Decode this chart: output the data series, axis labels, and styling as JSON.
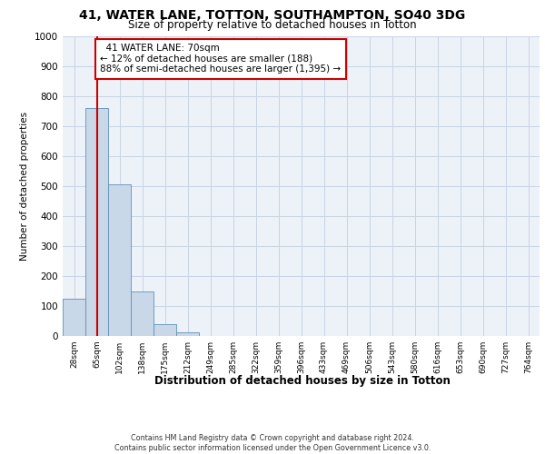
{
  "title_line1": "41, WATER LANE, TOTTON, SOUTHAMPTON, SO40 3DG",
  "title_line2": "Size of property relative to detached houses in Totton",
  "xlabel": "Distribution of detached houses by size in Totton",
  "ylabel": "Number of detached properties",
  "categories": [
    "28sqm",
    "65sqm",
    "102sqm",
    "138sqm",
    "175sqm",
    "212sqm",
    "249sqm",
    "285sqm",
    "322sqm",
    "359sqm",
    "396sqm",
    "433sqm",
    "469sqm",
    "506sqm",
    "543sqm",
    "580sqm",
    "616sqm",
    "653sqm",
    "690sqm",
    "727sqm",
    "764sqm"
  ],
  "values": [
    125,
    760,
    505,
    150,
    38,
    12,
    0,
    0,
    0,
    0,
    0,
    0,
    0,
    0,
    0,
    0,
    0,
    0,
    0,
    0,
    0
  ],
  "bar_color": "#c8d8e8",
  "bar_edge_color": "#6090b8",
  "vline_x": 1.0,
  "vline_color": "#cc0000",
  "annotation_text": "  41 WATER LANE: 70sqm\n← 12% of detached houses are smaller (188)\n88% of semi-detached houses are larger (1,395) →",
  "annotation_box_color": "#ffffff",
  "annotation_box_edge": "#cc0000",
  "ylim": [
    0,
    1000
  ],
  "yticks": [
    0,
    100,
    200,
    300,
    400,
    500,
    600,
    700,
    800,
    900,
    1000
  ],
  "grid_color": "#c8d4e4",
  "footnote": "Contains HM Land Registry data © Crown copyright and database right 2024.\nContains public sector information licensed under the Open Government Licence v3.0.",
  "bg_color": "#edf2f8"
}
